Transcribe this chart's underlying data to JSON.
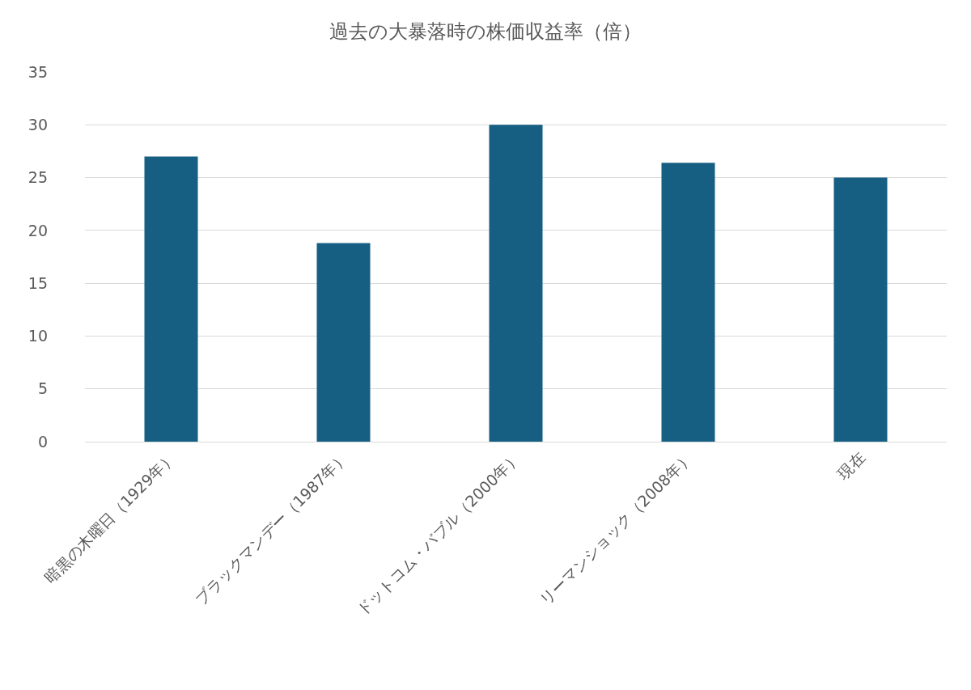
{
  "chart_data": {
    "type": "bar",
    "title": "過去の大暴落時の株価収益率（倍）",
    "categories": [
      "暗黒の木曜日（1929年）",
      "ブラックマンデー（1987年）",
      "ドットコム・バブル（2000年）",
      "リーマンショック（2008年）",
      "現在"
    ],
    "values": [
      27,
      18.8,
      30,
      26.4,
      25
    ],
    "color": "#175f82",
    "ylim": [
      0,
      35
    ],
    "yticks": [
      0,
      5,
      10,
      15,
      20,
      25,
      30,
      35
    ],
    "grid": "y",
    "legend": false
  }
}
